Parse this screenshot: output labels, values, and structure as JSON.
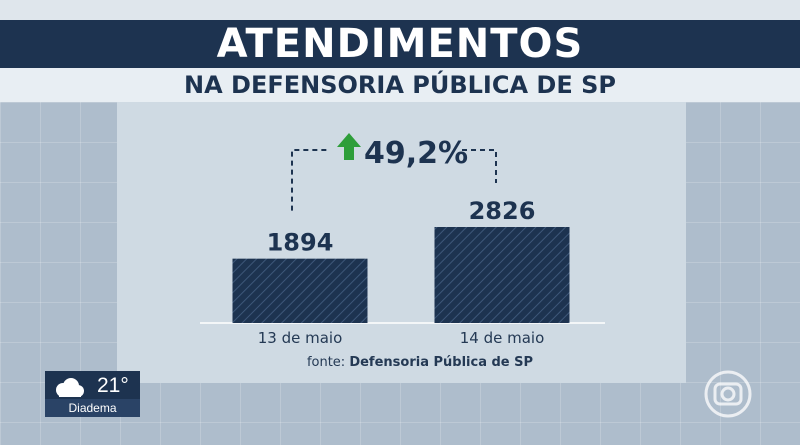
{
  "header": {
    "title": "ATENDIMENTOS",
    "subtitle": "NA DEFENSORIA PÚBLICA DE SP"
  },
  "chart_data": {
    "type": "bar",
    "title": "ATENDIMENTOS",
    "subtitle": "NA DEFENSORIA PÚBLICA DE SP",
    "categories": [
      "13 de maio",
      "14 de maio"
    ],
    "values": [
      1894,
      2826
    ],
    "value_labels": [
      "1894",
      "2826"
    ],
    "change_label": "49,2%",
    "change_direction": "up",
    "source_prefix": "fonte:",
    "source_name": "Defensoria Pública de SP",
    "ylim": [
      0,
      3300
    ],
    "grid": false,
    "colors": {
      "bar": "#1d3350",
      "arrow": "#2e9e3a",
      "text": "#1d3350"
    }
  },
  "weather": {
    "temperature": "21°",
    "city": "Diadema",
    "icon": "cloud-icon"
  },
  "logo": {
    "icon": "globo-logo-icon"
  }
}
